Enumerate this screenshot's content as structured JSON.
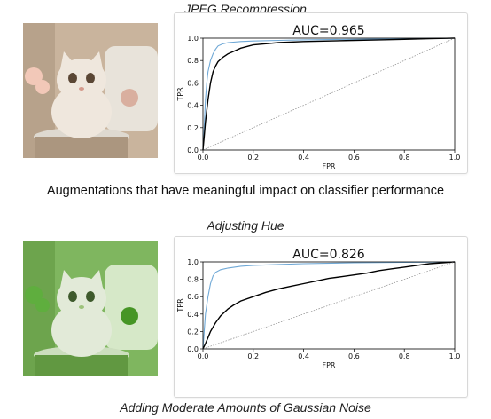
{
  "section_top": {
    "caption": "JPEG Recompression"
  },
  "heading": "Augmentations that have meaningful impact on classifier performance",
  "section_mid": {
    "caption": "Adjusting Hue"
  },
  "section_bottom": {
    "caption": "Adding Moderate Amounts of Gaussian Noise"
  },
  "thumbnails": [
    {
      "tone": "natural",
      "palette": {
        "bg": "#c9b49d",
        "chair": "#e8e3da",
        "cat": "#efe7dd",
        "accent": "#f2c8b8"
      }
    },
    {
      "tone": "hue-shifted-green",
      "palette": {
        "bg": "#7fb65f",
        "chair": "#d6e8c8",
        "cat": "#e2ead8",
        "accent": "#5fae3e"
      }
    }
  ],
  "chart_data": [
    {
      "type": "line",
      "title": "AUC=0.965",
      "xlabel": "FPR",
      "ylabel": "TPR",
      "xlim": [
        0,
        1
      ],
      "ylim": [
        0,
        1
      ],
      "xticks": [
        "0.0",
        "0.2",
        "0.4",
        "0.6",
        "0.8",
        "1.0"
      ],
      "yticks": [
        "0.0",
        "0.2",
        "0.4",
        "0.6",
        "0.8",
        "1.0"
      ],
      "grid": false,
      "series": [
        {
          "color": "#6fa8d6",
          "style": "solid",
          "x": [
            0,
            0.005,
            0.01,
            0.015,
            0.02,
            0.03,
            0.04,
            0.05,
            0.06,
            0.08,
            0.1,
            0.15,
            0.2,
            0.3,
            0.4,
            0.6,
            0.8,
            1.0
          ],
          "y": [
            0,
            0.2,
            0.45,
            0.6,
            0.7,
            0.8,
            0.86,
            0.9,
            0.93,
            0.95,
            0.96,
            0.97,
            0.975,
            0.98,
            0.985,
            0.99,
            0.995,
            1.0
          ]
        },
        {
          "color": "#000000",
          "style": "solid",
          "x": [
            0,
            0.005,
            0.01,
            0.02,
            0.03,
            0.04,
            0.05,
            0.06,
            0.08,
            0.1,
            0.12,
            0.15,
            0.2,
            0.25,
            0.3,
            0.4,
            0.5,
            0.6,
            0.7,
            0.8,
            0.9,
            1.0
          ],
          "y": [
            0,
            0.12,
            0.25,
            0.45,
            0.6,
            0.7,
            0.75,
            0.79,
            0.83,
            0.86,
            0.88,
            0.91,
            0.94,
            0.95,
            0.96,
            0.97,
            0.975,
            0.98,
            0.985,
            0.99,
            0.995,
            1.0
          ]
        },
        {
          "color": "#888888",
          "style": "dotted",
          "x": [
            0,
            1
          ],
          "y": [
            0,
            1
          ]
        }
      ]
    },
    {
      "type": "line",
      "title": "AUC=0.826",
      "xlabel": "FPR",
      "ylabel": "TPR",
      "xlim": [
        0,
        1
      ],
      "ylim": [
        0,
        1
      ],
      "xticks": [
        "0.0",
        "0.2",
        "0.4",
        "0.6",
        "0.8",
        "1.0"
      ],
      "yticks": [
        "0.0",
        "0.2",
        "0.4",
        "0.6",
        "0.8",
        "1.0"
      ],
      "grid": false,
      "series": [
        {
          "color": "#6fa8d6",
          "style": "solid",
          "x": [
            0,
            0.01,
            0.02,
            0.03,
            0.04,
            0.05,
            0.07,
            0.1,
            0.15,
            0.2,
            0.3,
            0.4,
            0.6,
            0.8,
            1.0
          ],
          "y": [
            0,
            0.4,
            0.6,
            0.75,
            0.84,
            0.88,
            0.91,
            0.93,
            0.95,
            0.96,
            0.97,
            0.98,
            0.99,
            0.995,
            1.0
          ]
        },
        {
          "color": "#000000",
          "style": "solid",
          "x": [
            0,
            0.01,
            0.02,
            0.03,
            0.05,
            0.07,
            0.1,
            0.12,
            0.15,
            0.2,
            0.25,
            0.3,
            0.35,
            0.4,
            0.45,
            0.5,
            0.55,
            0.6,
            0.65,
            0.7,
            0.75,
            0.8,
            0.85,
            0.9,
            0.95,
            1.0
          ],
          "y": [
            0,
            0.06,
            0.13,
            0.2,
            0.3,
            0.38,
            0.46,
            0.5,
            0.55,
            0.6,
            0.65,
            0.69,
            0.72,
            0.75,
            0.78,
            0.81,
            0.83,
            0.85,
            0.87,
            0.9,
            0.92,
            0.94,
            0.96,
            0.98,
            0.99,
            1.0
          ]
        },
        {
          "color": "#888888",
          "style": "dotted",
          "x": [
            0,
            1
          ],
          "y": [
            0,
            1
          ]
        }
      ]
    }
  ]
}
